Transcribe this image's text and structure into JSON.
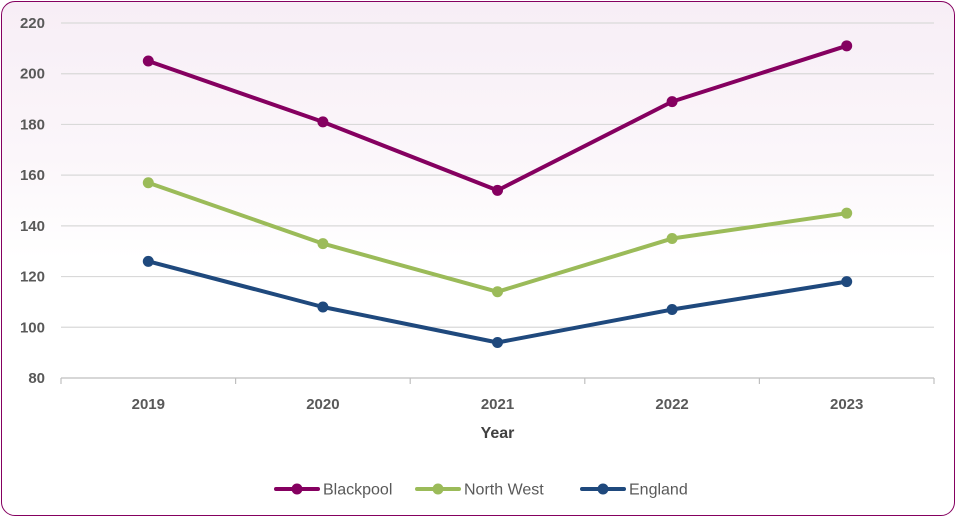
{
  "chart_data": {
    "type": "line",
    "title": "",
    "xlabel": "Year",
    "ylabel": "",
    "categories": [
      "2019",
      "2020",
      "2021",
      "2022",
      "2023"
    ],
    "ylim": [
      80,
      220
    ],
    "yticks": [
      "80",
      "100",
      "120",
      "140",
      "160",
      "180",
      "200",
      "220"
    ],
    "grid": true,
    "legend_position": "bottom",
    "series": [
      {
        "name": "Blackpool",
        "color": "#850060",
        "values": [
          205,
          181,
          154,
          189,
          211
        ]
      },
      {
        "name": "North West",
        "color": "#9BBB59",
        "values": [
          157,
          133,
          114,
          135,
          145
        ]
      },
      {
        "name": "England",
        "color": "#1F497D",
        "values": [
          126,
          108,
          94,
          107,
          118
        ]
      }
    ]
  }
}
